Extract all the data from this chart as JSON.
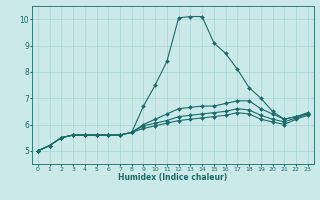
{
  "xlabel": "Humidex (Indice chaleur)",
  "ylabel": "",
  "xlim": [
    -0.5,
    23.5
  ],
  "ylim": [
    4.5,
    10.5
  ],
  "yticks": [
    5,
    6,
    7,
    8,
    9,
    10
  ],
  "xticks": [
    0,
    1,
    2,
    3,
    4,
    5,
    6,
    7,
    8,
    9,
    10,
    11,
    12,
    13,
    14,
    15,
    16,
    17,
    18,
    19,
    20,
    21,
    22,
    23
  ],
  "bg_color": "#cce9e9",
  "grid_color": "#a8d4d4",
  "line_color": "#1a6b6b",
  "series": [
    [
      5.0,
      5.2,
      5.5,
      5.6,
      5.6,
      5.6,
      5.6,
      5.6,
      5.7,
      6.7,
      7.5,
      8.4,
      10.05,
      10.1,
      10.1,
      9.1,
      8.7,
      8.1,
      7.4,
      7.0,
      6.5,
      6.2,
      6.3,
      6.4
    ],
    [
      5.0,
      5.2,
      5.5,
      5.6,
      5.6,
      5.6,
      5.6,
      5.6,
      5.7,
      6.0,
      6.2,
      6.4,
      6.6,
      6.65,
      6.7,
      6.7,
      6.8,
      6.9,
      6.9,
      6.6,
      6.4,
      6.2,
      6.3,
      6.45
    ],
    [
      5.0,
      5.2,
      5.5,
      5.6,
      5.6,
      5.6,
      5.6,
      5.6,
      5.7,
      5.95,
      6.05,
      6.15,
      6.3,
      6.35,
      6.4,
      6.45,
      6.5,
      6.6,
      6.55,
      6.35,
      6.2,
      6.1,
      6.25,
      6.4
    ],
    [
      5.0,
      5.2,
      5.5,
      5.6,
      5.6,
      5.6,
      5.6,
      5.6,
      5.7,
      5.85,
      5.95,
      6.05,
      6.15,
      6.2,
      6.25,
      6.3,
      6.35,
      6.45,
      6.4,
      6.2,
      6.1,
      6.0,
      6.2,
      6.35
    ]
  ]
}
